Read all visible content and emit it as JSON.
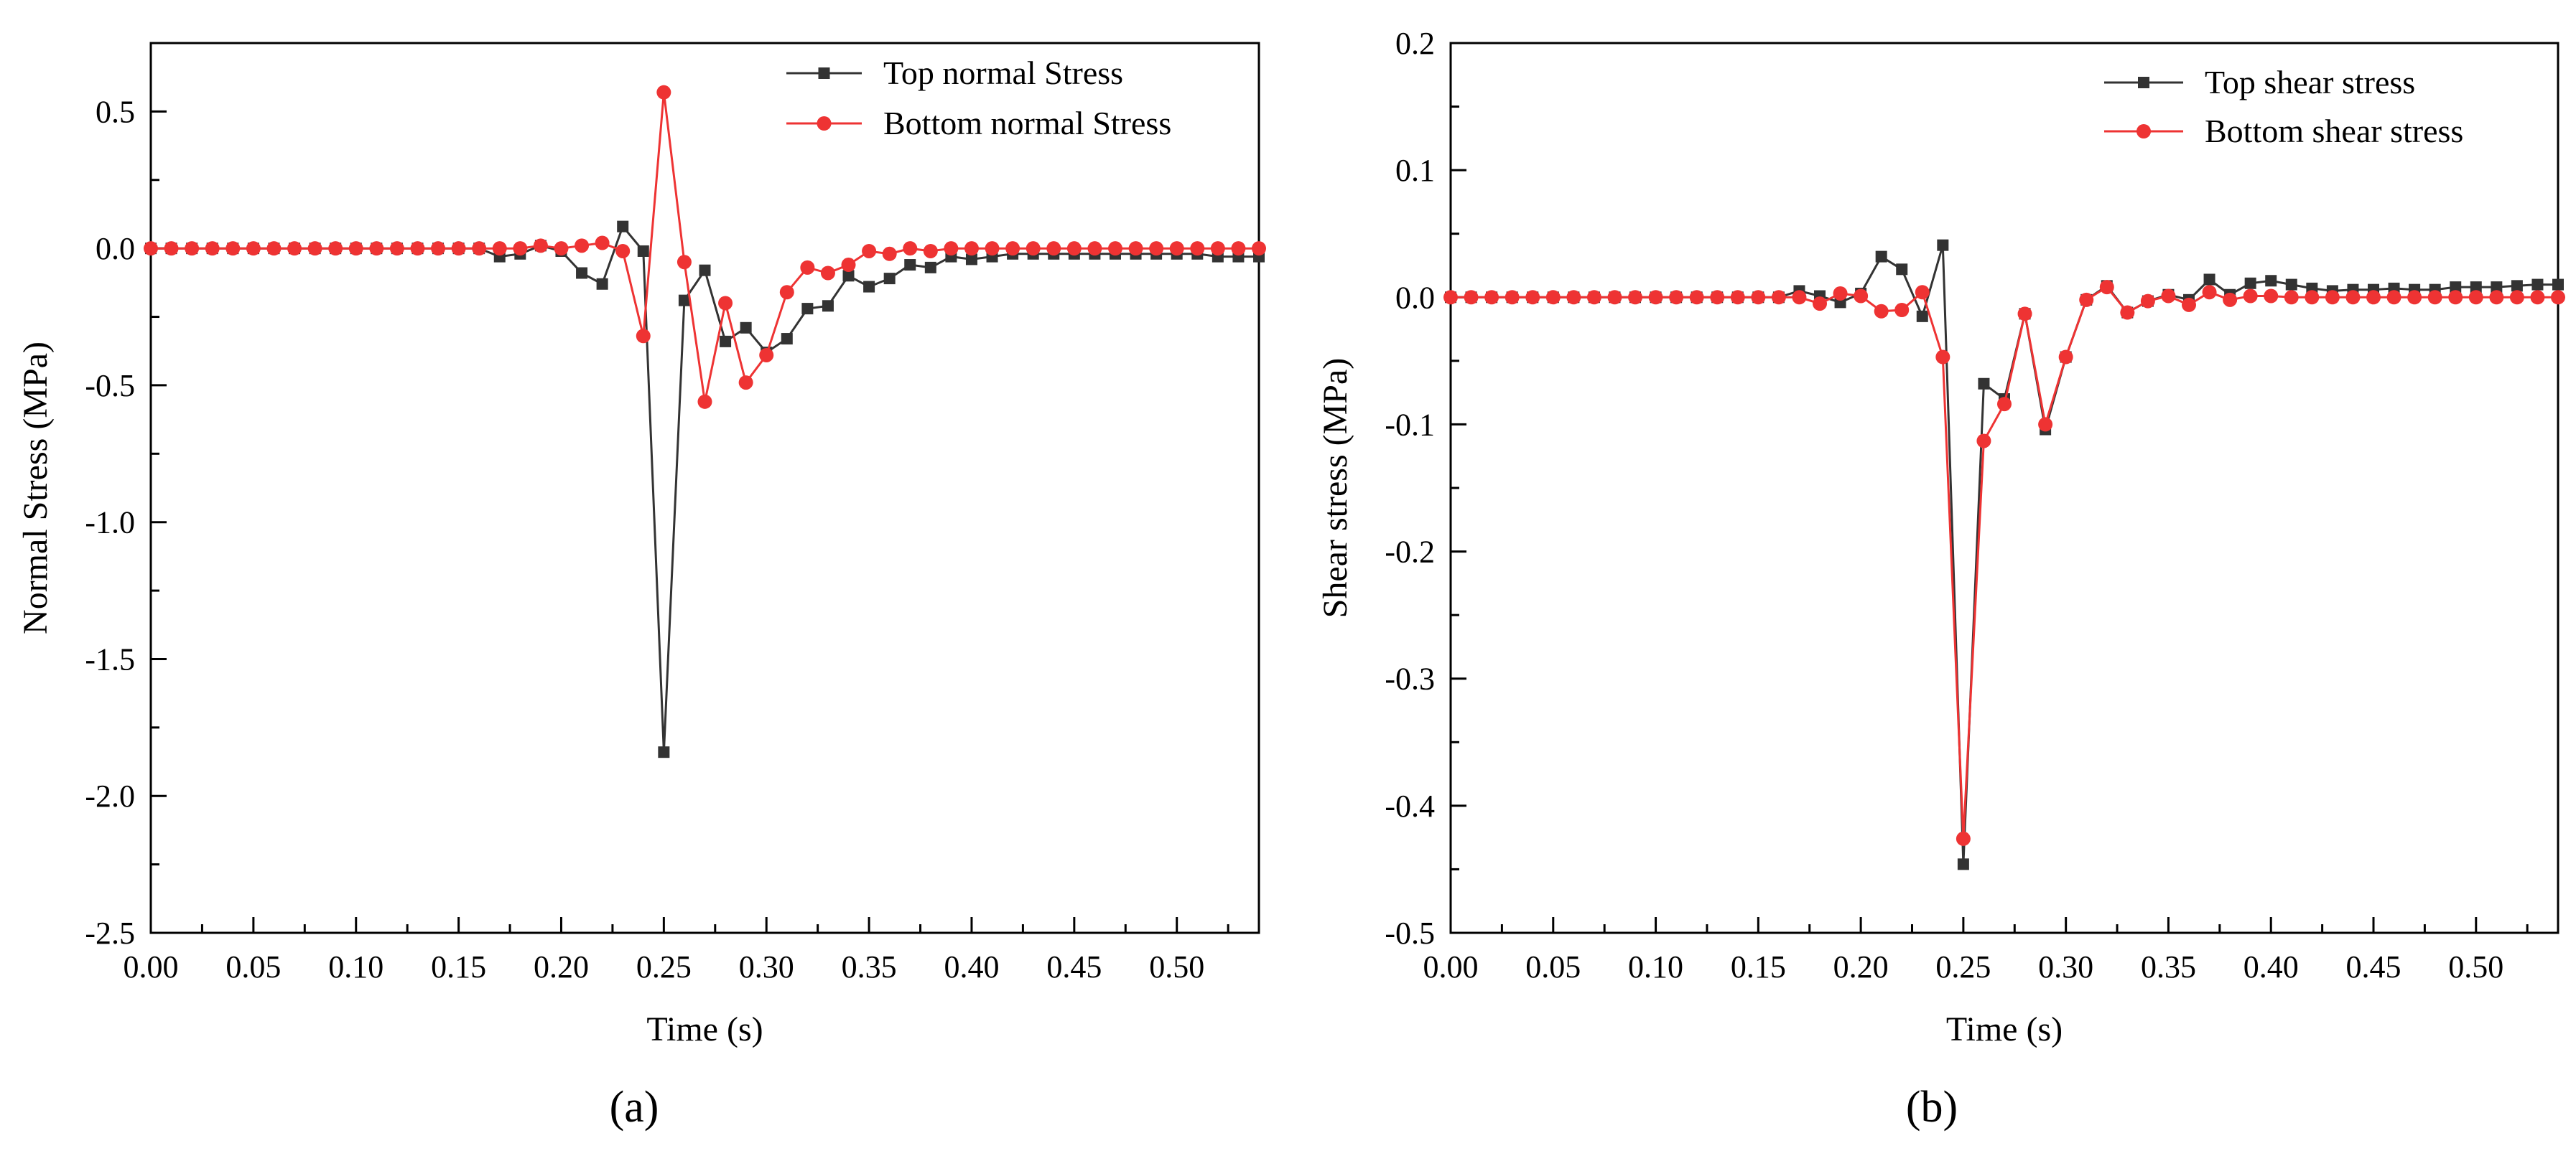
{
  "figure": {
    "panel_labels": [
      "(a)",
      "(b)"
    ]
  },
  "chart_data": [
    {
      "type": "line",
      "panel": "(a)",
      "title": "",
      "xlabel": "Time (s)",
      "ylabel": "Normal Stress (MPa)",
      "xlim": [
        0.0,
        0.54
      ],
      "ylim": [
        -2.5,
        0.75
      ],
      "xticks": [
        0.0,
        0.05,
        0.1,
        0.15,
        0.2,
        0.25,
        0.3,
        0.35,
        0.4,
        0.45,
        0.5
      ],
      "xtick_labels": [
        "0.00",
        "0.05",
        "0.10",
        "0.15",
        "0.20",
        "0.25",
        "0.30",
        "0.35",
        "0.40",
        "0.45",
        "0.50"
      ],
      "yticks": [
        -2.5,
        -2.0,
        -1.5,
        -1.0,
        -0.5,
        0.0,
        0.5
      ],
      "ytick_labels": [
        "-2.5",
        "-2.0",
        "-1.5",
        "-1.0",
        "-0.5",
        "0.0",
        "0.5"
      ],
      "grid": false,
      "legend_position": "top-right",
      "x": [
        0.0,
        0.01,
        0.02,
        0.03,
        0.04,
        0.05,
        0.06,
        0.07,
        0.08,
        0.09,
        0.1,
        0.11,
        0.12,
        0.13,
        0.14,
        0.15,
        0.16,
        0.17,
        0.18,
        0.19,
        0.2,
        0.21,
        0.22,
        0.23,
        0.24,
        0.25,
        0.26,
        0.27,
        0.28,
        0.29,
        0.3,
        0.31,
        0.32,
        0.33,
        0.34,
        0.35,
        0.36,
        0.37,
        0.38,
        0.39,
        0.4,
        0.41,
        0.42,
        0.43,
        0.44,
        0.45,
        0.46,
        0.47,
        0.48,
        0.49,
        0.5,
        0.51,
        0.52,
        0.53,
        0.54
      ],
      "series": [
        {
          "name": "Top normal Stress",
          "color": "#333333",
          "marker": "square",
          "values": [
            0,
            0,
            0,
            0,
            0,
            0,
            0,
            0,
            0,
            0,
            0,
            0,
            0,
            0,
            0,
            0,
            0,
            -0.03,
            -0.02,
            0.01,
            -0.01,
            -0.09,
            -0.13,
            0.08,
            -0.01,
            -1.84,
            -0.19,
            -0.08,
            -0.34,
            -0.29,
            -0.38,
            -0.33,
            -0.22,
            -0.21,
            -0.1,
            -0.14,
            -0.11,
            -0.06,
            -0.07,
            -0.03,
            -0.04,
            -0.03,
            -0.02,
            -0.02,
            -0.02,
            -0.02,
            -0.02,
            -0.02,
            -0.02,
            -0.02,
            -0.02,
            -0.02,
            -0.03,
            -0.03,
            -0.03
          ]
        },
        {
          "name": "Bottom normal Stress",
          "color": "#ee3333",
          "marker": "circle",
          "values": [
            0,
            0,
            0,
            0,
            0,
            0,
            0,
            0,
            0,
            0,
            0,
            0,
            0,
            0,
            0,
            0,
            0,
            0,
            0,
            0.01,
            0,
            0.01,
            0.02,
            -0.01,
            -0.32,
            0.57,
            -0.05,
            -0.56,
            -0.2,
            -0.49,
            -0.39,
            -0.16,
            -0.07,
            -0.09,
            -0.06,
            -0.01,
            -0.02,
            0,
            -0.01,
            0,
            0,
            0,
            0,
            0,
            0,
            0,
            0,
            0,
            0,
            0,
            0,
            0,
            0,
            0,
            0
          ]
        }
      ]
    },
    {
      "type": "line",
      "panel": "(b)",
      "title": "",
      "xlabel": "Time (s)",
      "ylabel": "Shear stress (MPa)",
      "xlim": [
        0.0,
        0.54
      ],
      "ylim": [
        -0.5,
        0.2
      ],
      "xticks": [
        0.0,
        0.05,
        0.1,
        0.15,
        0.2,
        0.25,
        0.3,
        0.35,
        0.4,
        0.45,
        0.5
      ],
      "xtick_labels": [
        "0.00",
        "0.05",
        "0.10",
        "0.15",
        "0.20",
        "0.25",
        "0.30",
        "0.35",
        "0.40",
        "0.45",
        "0.50"
      ],
      "yticks": [
        -0.5,
        -0.4,
        -0.3,
        -0.2,
        -0.1,
        0.0,
        0.1,
        0.2
      ],
      "ytick_labels": [
        "-0.5",
        "-0.4",
        "-0.3",
        "-0.2",
        "-0.1",
        "0.0",
        "0.1",
        "0.2"
      ],
      "grid": false,
      "legend_position": "top-right",
      "x": [
        0.0,
        0.01,
        0.02,
        0.03,
        0.04,
        0.05,
        0.06,
        0.07,
        0.08,
        0.09,
        0.1,
        0.11,
        0.12,
        0.13,
        0.14,
        0.15,
        0.16,
        0.17,
        0.18,
        0.19,
        0.2,
        0.21,
        0.22,
        0.23,
        0.24,
        0.25,
        0.26,
        0.27,
        0.28,
        0.29,
        0.3,
        0.31,
        0.32,
        0.33,
        0.34,
        0.35,
        0.36,
        0.37,
        0.38,
        0.39,
        0.4,
        0.41,
        0.42,
        0.43,
        0.44,
        0.45,
        0.46,
        0.47,
        0.48,
        0.49,
        0.5,
        0.51,
        0.52,
        0.53,
        0.54
      ],
      "series": [
        {
          "name": "Top shear stress",
          "color": "#333333",
          "marker": "square",
          "values": [
            0,
            0,
            0,
            0,
            0,
            0,
            0,
            0,
            0,
            0,
            0,
            0,
            0,
            0,
            0,
            0,
            0,
            0.005,
            0.001,
            -0.004,
            0.003,
            0.032,
            0.022,
            -0.015,
            0.041,
            -0.446,
            -0.068,
            -0.08,
            -0.013,
            -0.104,
            -0.047,
            -0.002,
            0.009,
            -0.012,
            -0.003,
            0.002,
            -0.002,
            0.014,
            0.002,
            0.011,
            0.013,
            0.01,
            0.007,
            0.005,
            0.006,
            0.006,
            0.007,
            0.006,
            0.006,
            0.008,
            0.008,
            0.008,
            0.009,
            0.01,
            0.01
          ]
        },
        {
          "name": "Bottom shear stress",
          "color": "#ee3333",
          "marker": "circle",
          "values": [
            0,
            0,
            0,
            0,
            0,
            0,
            0,
            0,
            0,
            0,
            0,
            0,
            0,
            0,
            0,
            0,
            0,
            0,
            -0.005,
            0.003,
            0.001,
            -0.011,
            -0.01,
            0.004,
            -0.047,
            -0.426,
            -0.113,
            -0.084,
            -0.013,
            -0.1,
            -0.047,
            -0.002,
            0.008,
            -0.012,
            -0.003,
            0.001,
            -0.006,
            0.004,
            -0.002,
            0.001,
            0.001,
            0,
            0,
            0,
            0,
            0,
            0,
            0,
            0,
            0,
            0,
            0,
            0,
            0,
            0
          ]
        }
      ]
    }
  ]
}
